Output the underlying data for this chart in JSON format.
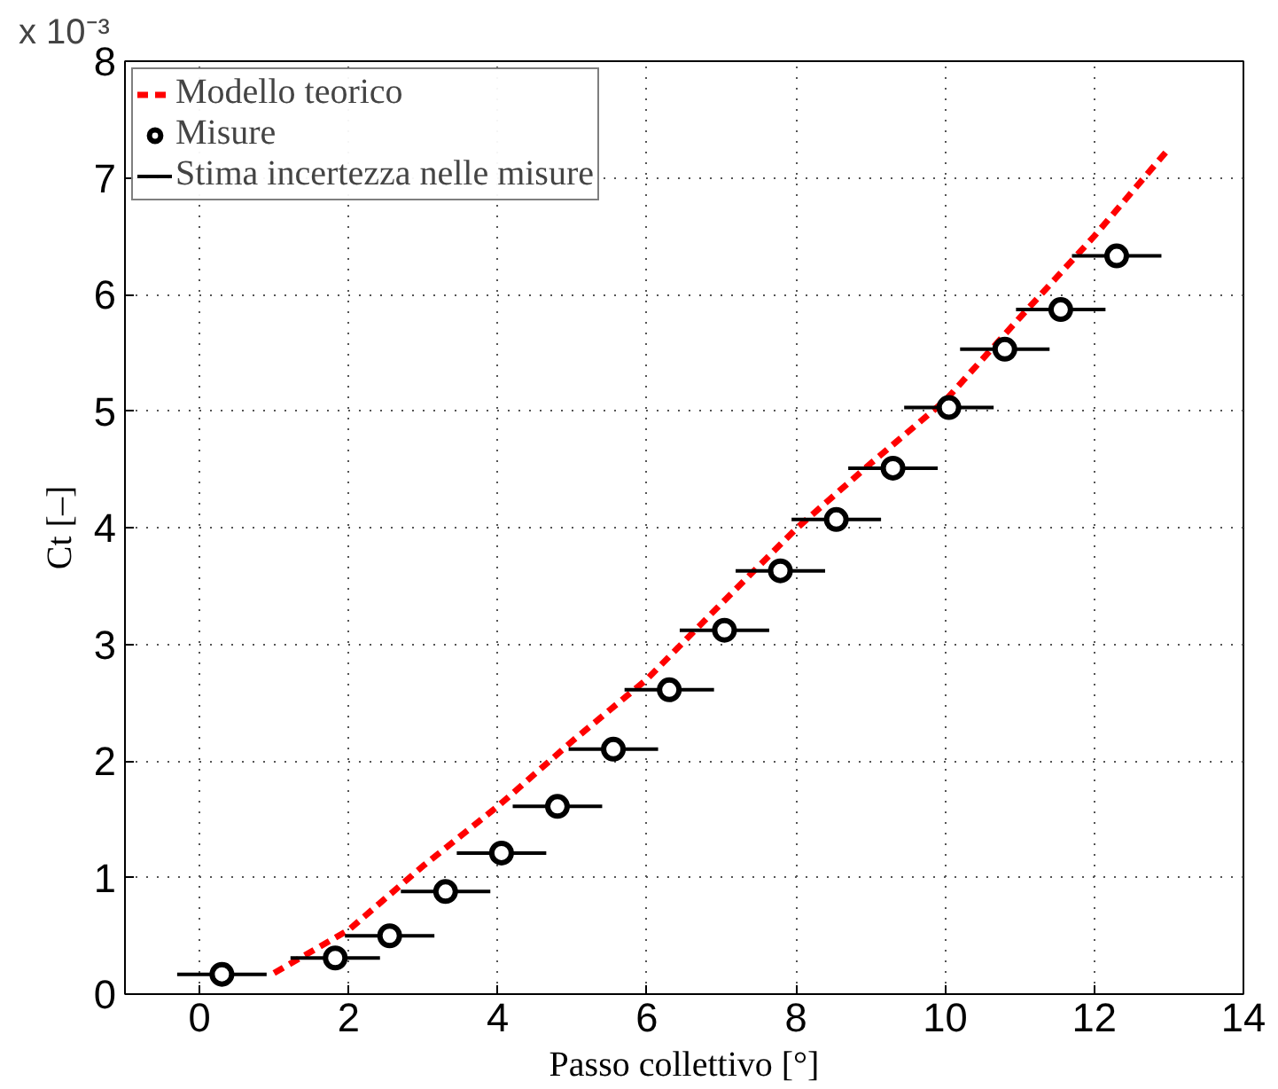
{
  "chart_data": {
    "type": "scatter",
    "xlabel": "Passo collettivo [°]",
    "ylabel": "Ct [–]",
    "annotations": [
      "x 10⁻³",
      "Stima incertezza nelle misure"
    ],
    "xlim": [
      -1,
      14
    ],
    "ylim": [
      0,
      8
    ],
    "xticks": [
      0,
      2,
      4,
      6,
      8,
      10,
      12,
      14
    ],
    "yticks": [
      0,
      1,
      2,
      3,
      4,
      5,
      6,
      7,
      8
    ],
    "grid": true,
    "legend": "top left",
    "series": [
      {
        "name": "Modello teorico",
        "type": "line",
        "color": "#ff0000",
        "line_style": "dashed",
        "marker": "none",
        "x": [
          1,
          2,
          3,
          4,
          5,
          6,
          7,
          8,
          9,
          10,
          11,
          12,
          13
        ],
        "values": [
          0.18,
          0.55,
          1.1,
          1.61,
          2.17,
          2.7,
          3.35,
          3.99,
          4.55,
          5.09,
          5.8,
          6.5,
          7.25
        ]
      },
      {
        "name": "Misure",
        "color": "#000000",
        "marker": "circle",
        "x": [
          0.3,
          1.82,
          2.55,
          3.3,
          4.05,
          4.8,
          5.55,
          6.3,
          7.04,
          7.79,
          8.54,
          9.3,
          10.05,
          10.8,
          11.55,
          12.3
        ],
        "values": [
          0.17,
          0.31,
          0.5,
          0.88,
          1.21,
          1.61,
          2.1,
          2.61,
          3.12,
          3.63,
          4.07,
          4.51,
          5.03,
          5.53,
          5.87,
          6.33
        ],
        "xerrors": [
          0.6,
          0.6,
          0.6,
          0.6,
          0.6,
          0.6,
          0.6,
          0.6,
          0.6,
          0.6,
          0.6,
          0.6,
          0.6,
          0.6,
          0.6,
          0.6
        ]
      }
    ]
  }
}
